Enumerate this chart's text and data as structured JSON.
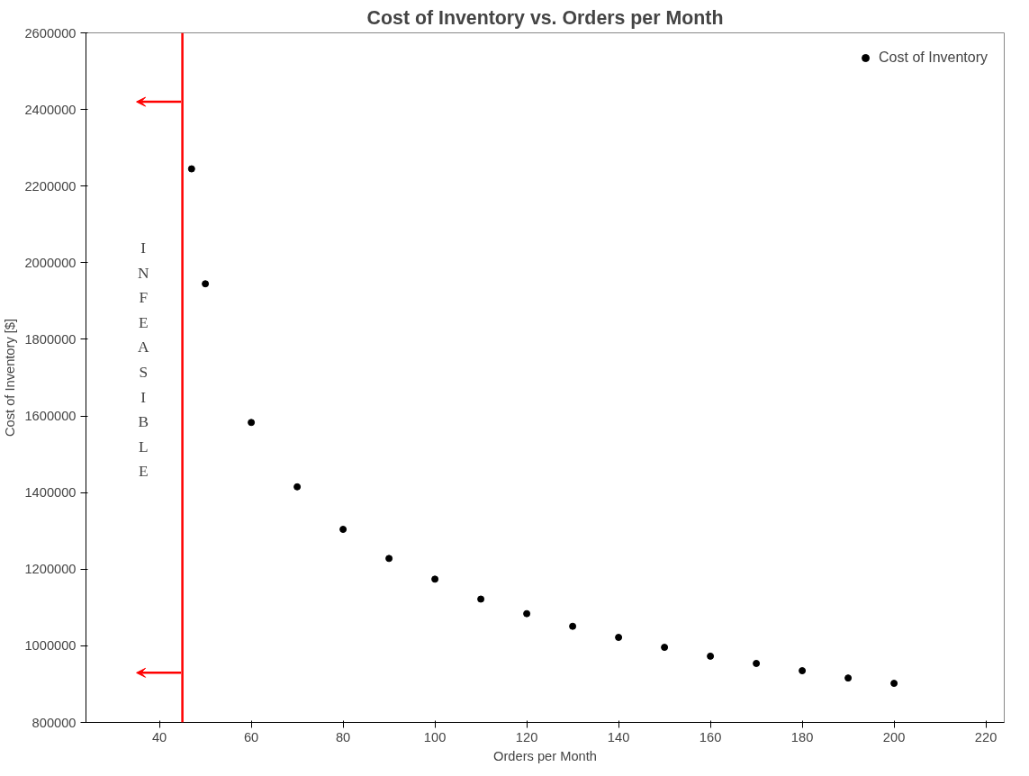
{
  "chart_data": {
    "type": "scatter",
    "title": "Cost of Inventory vs. Orders per Month",
    "xlabel": "Orders per Month",
    "ylabel": "Cost of Inventory [$]",
    "x": [
      47,
      50,
      60,
      70,
      80,
      90,
      100,
      110,
      120,
      130,
      140,
      150,
      160,
      170,
      180,
      190,
      200
    ],
    "series": [
      {
        "name": "Cost of Inventory",
        "color": "#000000",
        "values": [
          2245000,
          1945000,
          1583000,
          1415000,
          1304000,
          1228000,
          1174000,
          1122000,
          1084000,
          1051000,
          1022000,
          996000,
          973000,
          954000,
          935000,
          916000,
          902000
        ]
      }
    ],
    "xlim": [
      24,
      224
    ],
    "xticks": [
      40,
      60,
      80,
      100,
      120,
      140,
      160,
      180,
      200,
      220
    ],
    "ylim": [
      800000,
      2600000
    ],
    "yticks": [
      800000,
      1000000,
      1200000,
      1400000,
      1600000,
      1800000,
      2000000,
      2200000,
      2400000,
      2600000
    ],
    "ref_lines": [
      {
        "axis": "x",
        "value": 45,
        "label": "INFEASIBLE",
        "color": "#ff0000"
      }
    ],
    "marker": "circle",
    "legend": "top right",
    "grid": false
  }
}
